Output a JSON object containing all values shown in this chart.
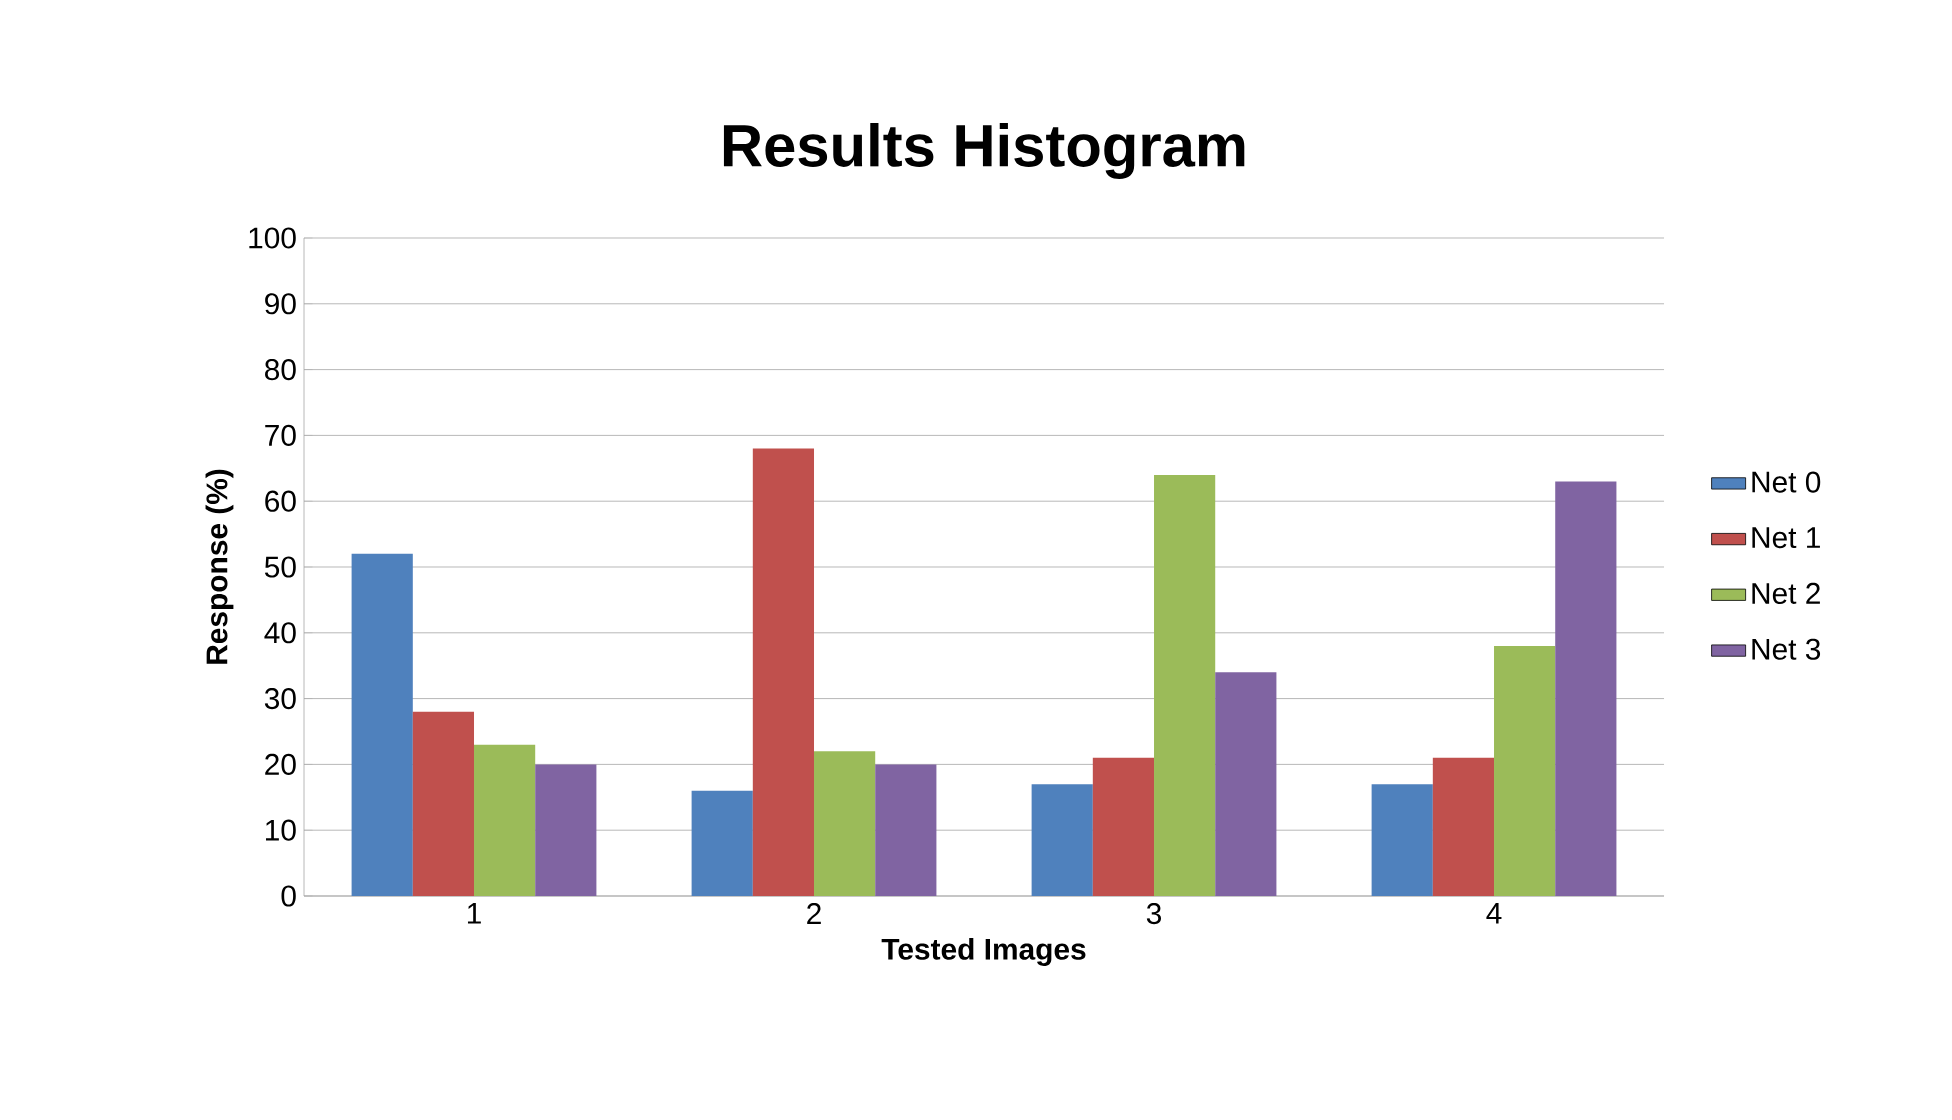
{
  "chart_data": {
    "type": "bar",
    "title": "Results Histogram",
    "xlabel": "Tested Images",
    "ylabel": "Response (%)",
    "categories": [
      "1",
      "2",
      "3",
      "4"
    ],
    "series": [
      {
        "name": "Net 0",
        "color": "#4f81bd",
        "values": [
          52,
          16,
          17,
          17
        ]
      },
      {
        "name": "Net 1",
        "color": "#c0504d",
        "values": [
          28,
          68,
          21,
          21
        ]
      },
      {
        "name": "Net 2",
        "color": "#9bbb59",
        "values": [
          23,
          22,
          64,
          38
        ]
      },
      {
        "name": "Net 3",
        "color": "#8064a2",
        "values": [
          20,
          20,
          34,
          63
        ]
      }
    ],
    "ylim": [
      0,
      100
    ],
    "yticks": [
      0,
      10,
      20,
      30,
      40,
      50,
      60,
      70,
      80,
      90,
      100
    ],
    "grid": "y",
    "legend": "right"
  }
}
